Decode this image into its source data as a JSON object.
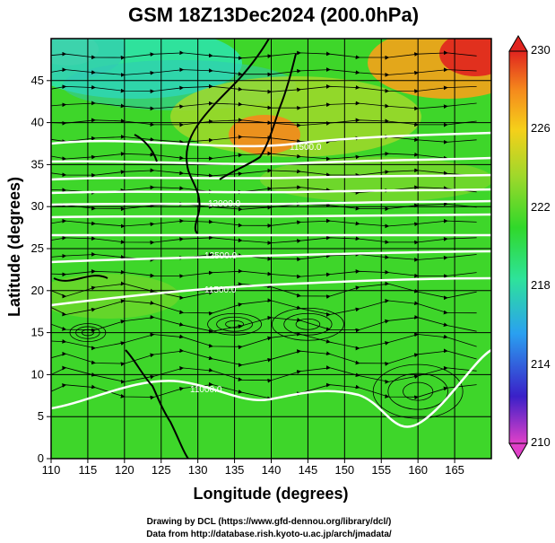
{
  "title": "GSM 18Z13Dec2024 (200.0hPa)",
  "xlabel": "Longitude (degrees)",
  "ylabel": "Latitude  (degrees)",
  "x_ticks": [
    "110",
    "115",
    "120",
    "125",
    "130",
    "135",
    "140",
    "145",
    "150",
    "155",
    "160",
    "165"
  ],
  "y_ticks": [
    "0",
    "5",
    "10",
    "15",
    "20",
    "25",
    "30",
    "35",
    "40",
    "45"
  ],
  "colorbar": {
    "ticks": [
      "230",
      "226",
      "222",
      "218",
      "214",
      "210"
    ],
    "colors": [
      "#d94cc9",
      "#2a2ad6",
      "#29b8f0",
      "#2ee39a",
      "#40d820",
      "#a7d82b",
      "#f7d417",
      "#f78a1a",
      "#e4261f"
    ]
  },
  "contour_labels": [
    "11500.0",
    "12000.0",
    "12500.0",
    "11500.0",
    "11000.0"
  ],
  "credits": {
    "line1": "Drawing by DCL (https://www.gfd-dennou.org/library/dcl/)",
    "line2": "Data from http://database.rish.kyoto-u.ac.jp/arch/jmadata/"
  },
  "chart_data": {
    "type": "heatmap",
    "title": "GSM 18Z13Dec2024 (200.0hPa)",
    "xlabel": "Longitude (degrees)",
    "ylabel": "Latitude  (degrees)",
    "xlim": [
      110,
      170
    ],
    "ylim": [
      0,
      50
    ],
    "colorbar_range": [
      210,
      230
    ],
    "colorbar_ticks": [
      230,
      226,
      222,
      218,
      214,
      210
    ],
    "contour_levels": [
      11000,
      11500,
      12000,
      12500
    ],
    "grid": true
  }
}
